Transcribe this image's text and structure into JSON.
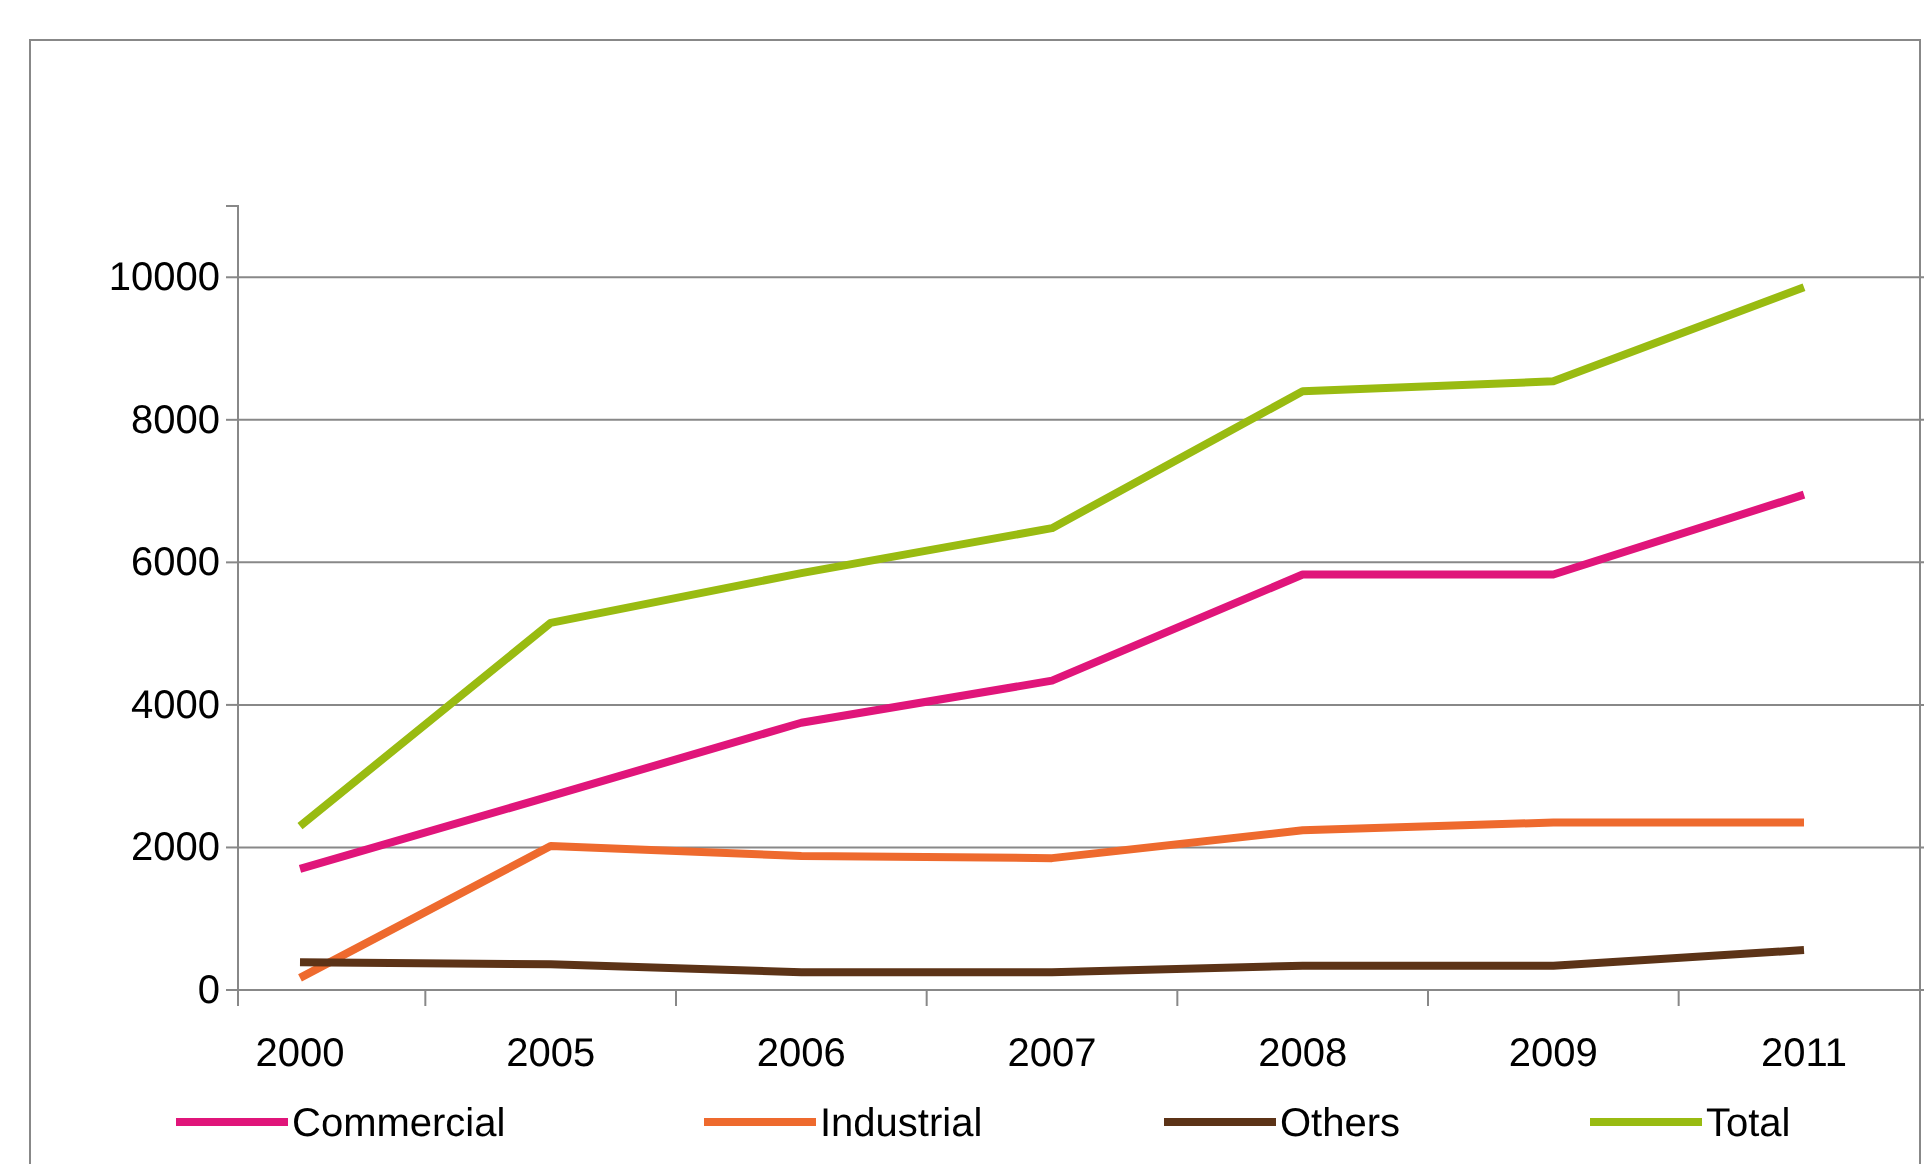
{
  "chart_data": {
    "type": "line",
    "categories": [
      "2000",
      "2005",
      "2006",
      "2007",
      "2008",
      "2009",
      "2011"
    ],
    "series": [
      {
        "name": "Commercial",
        "color": "#e0157a",
        "values": [
          1700,
          2720,
          3750,
          4340,
          5830,
          5830,
          6950
        ]
      },
      {
        "name": "Industrial",
        "color": "#ee6a2e",
        "values": [
          170,
          2020,
          1880,
          1850,
          2240,
          2350,
          2350
        ]
      },
      {
        "name": "Others",
        "color": "#5c3317",
        "values": [
          390,
          360,
          250,
          250,
          340,
          340,
          560
        ]
      },
      {
        "name": "Total",
        "color": "#99bb11",
        "values": [
          2300,
          5150,
          5850,
          6480,
          8400,
          8540,
          9860
        ]
      }
    ],
    "ylim": [
      0,
      11000
    ],
    "yticks": [
      0,
      2000,
      4000,
      6000,
      8000,
      10000
    ],
    "grid": "y",
    "legend": "bottom",
    "marker": "none",
    "line_style": "solid"
  }
}
